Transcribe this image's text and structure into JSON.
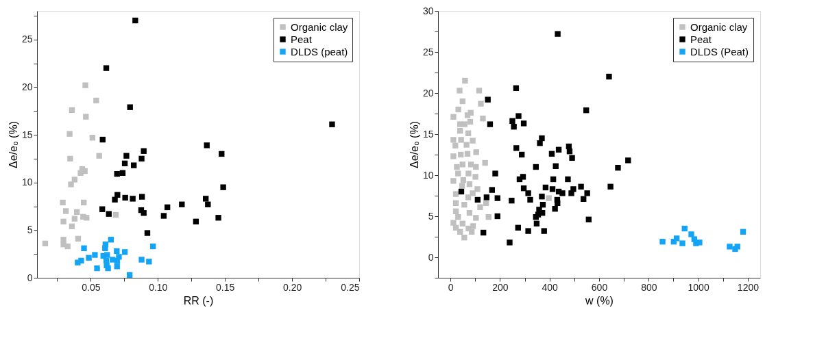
{
  "chart_data": [
    {
      "type": "scatter",
      "xlabel": "RR (-)",
      "ylabel": "Δe/e₀ (%)",
      "marker": "square",
      "grid": false,
      "legend": "top right",
      "xlim": [
        0.01,
        0.25
      ],
      "ylim": [
        0,
        28
      ],
      "xticks": [
        {
          "value": 0.025,
          "label": null
        },
        0.05,
        {
          "value": 0.075,
          "label": null
        },
        {
          "value": 0.1,
          "label": "0.10"
        },
        {
          "value": 0.125,
          "label": null
        },
        0.15,
        {
          "value": 0.175,
          "label": null
        },
        {
          "value": 0.2,
          "label": "0.20"
        },
        {
          "value": 0.225,
          "label": null
        },
        0.25
      ],
      "yticks": [
        0,
        {
          "value": 2.5,
          "label": null
        },
        5,
        {
          "value": 7.5,
          "label": null
        },
        10,
        {
          "value": 12.5,
          "label": null
        },
        15,
        {
          "value": 17.5,
          "label": null
        },
        20,
        {
          "value": 22.5,
          "label": null
        },
        25,
        {
          "value": 27.5,
          "label": null
        }
      ],
      "series": [
        {
          "name": "Organic clay",
          "color": "#c0c0c0",
          "x": [
            0.0161,
            0.0292,
            0.0315,
            0.0297,
            0.0297,
            0.0297,
            0.0328,
            0.036,
            0.038,
            0.0397,
            0.0406,
            0.0353,
            0.038,
            0.0347,
            0.0343,
            0.036,
            0.0425,
            0.0437,
            0.0456,
            0.0448,
            0.0444,
            0.0469,
            0.046,
            0.0464,
            0.0513,
            0.0541,
            0.0563,
            0.0687
          ],
          "values": [
            3.6,
            7.9,
            7.0,
            5.9,
            4.0,
            3.5,
            3.3,
            5.4,
            6.2,
            6.9,
            4.1,
            9.8,
            10.3,
            12.5,
            15.1,
            17.6,
            11.0,
            11.4,
            11.2,
            7.9,
            6.4,
            6.3,
            20.2,
            16.9,
            14.7,
            18.6,
            12.8,
            6.6
          ]
        },
        {
          "name": "Peat",
          "color": "#000000",
          "x": [
            0.0832,
            0.0616,
            0.0793,
            0.0589,
            0.0766,
            0.0754,
            0.0821,
            0.0879,
            0.0895,
            0.0696,
            0.0738,
            0.0699,
            0.068,
            0.0757,
            0.0813,
            0.0882,
            0.0586,
            0.0635,
            0.0876,
            0.0895,
            0.0922,
            0.1044,
            0.1071,
            0.1179,
            0.1284,
            0.2298,
            0.1365,
            0.1475,
            0.1487,
            0.1357,
            0.1373,
            0.1451
          ],
          "values": [
            27.0,
            22.0,
            17.9,
            14.5,
            12.8,
            12.0,
            11.8,
            12.5,
            13.3,
            10.9,
            11.0,
            8.7,
            8.2,
            8.4,
            8.3,
            8.5,
            7.2,
            6.7,
            7.1,
            6.8,
            4.7,
            6.5,
            7.4,
            7.7,
            5.9,
            16.1,
            13.9,
            13.0,
            9.5,
            8.3,
            7.7,
            6.3
          ]
        },
        {
          "name": "DLDS (peat)",
          "color": "#13a4f5",
          "x": [
            0.0403,
            0.0429,
            0.045,
            0.0486,
            0.0531,
            0.0547,
            0.0594,
            0.0607,
            0.061,
            0.0616,
            0.0622,
            0.0619,
            0.0629,
            0.0651,
            0.0663,
            0.0694,
            0.0697,
            0.071,
            0.0696,
            0.0754,
            0.079,
            0.0879,
            0.0934,
            0.0964
          ],
          "values": [
            1.6,
            1.8,
            3.1,
            2.1,
            2.4,
            1.0,
            2.3,
            3.1,
            3.5,
            1.8,
            2.4,
            1.3,
            1.0,
            4.0,
            1.9,
            2.8,
            1.8,
            2.2,
            1.2,
            2.7,
            0.3,
            1.9,
            1.7,
            3.3
          ]
        }
      ]
    },
    {
      "type": "scatter",
      "xlabel": "w (%)",
      "ylabel": "Δe/e₀ (%)",
      "marker": "square",
      "grid": false,
      "legend": "top right",
      "xlim": [
        -50,
        1250
      ],
      "ylim": [
        -2.5,
        30
      ],
      "xticks": [
        0,
        {
          "value": 100,
          "label": null
        },
        200,
        {
          "value": 300,
          "label": null
        },
        400,
        {
          "value": 500,
          "label": null
        },
        600,
        {
          "value": 700,
          "label": null
        },
        800,
        {
          "value": 900,
          "label": null
        },
        1000,
        {
          "value": 1100,
          "label": null
        },
        1200
      ],
      "yticks": [
        {
          "value": -2.5,
          "label": null
        },
        0,
        {
          "value": 2.5,
          "label": null
        },
        5,
        {
          "value": 7.5,
          "label": null
        },
        10,
        {
          "value": 12.5,
          "label": null
        },
        15,
        {
          "value": 17.5,
          "label": null
        },
        20,
        {
          "value": 22.5,
          "label": null
        },
        25,
        {
          "value": 27.5,
          "label": null
        },
        30
      ],
      "series": [
        {
          "name": "Organic clay",
          "color": "#c0c0c0",
          "x": [
            59,
            37,
            116,
            49,
            123,
            32,
            82,
            12,
            69,
            131,
            39,
            80,
            39,
            72,
            12,
            43,
            20,
            65,
            12,
            42,
            69,
            104,
            140,
            49,
            83,
            103,
            31,
            73,
            101,
            12,
            52,
            77,
            109,
            22,
            90,
            72,
            397,
            22,
            56,
            144,
            120,
            22,
            77,
            103,
            154,
            12,
            49,
            91,
            22,
            73,
            56,
            39,
            86,
            31,
            47,
            26,
            90,
            57
          ],
          "values": [
            21.5,
            20.3,
            20.3,
            19.0,
            18.7,
            18.0,
            17.6,
            17.1,
            17.3,
            16.9,
            16.2,
            16.5,
            15.4,
            15.1,
            14.3,
            14.3,
            13.6,
            13.7,
            12.3,
            12.5,
            12.6,
            12.8,
            11.5,
            11.3,
            11.3,
            11.0,
            10.2,
            10.2,
            9.8,
            9.3,
            9.4,
            8.9,
            8.3,
            7.7,
            7.8,
            7.3,
            7.2,
            6.6,
            6.4,
            6.6,
            6.1,
            5.6,
            5.4,
            4.8,
            4.9,
            4.2,
            4.1,
            3.8,
            3.6,
            3.5,
            2.4,
            3.1,
            3.1,
            4.9,
            8.7,
            11.0,
            14.2,
            16.2
          ]
        },
        {
          "name": "Peat",
          "color": "#000000",
          "x": [
            433,
            640,
            265,
            151,
            548,
            275,
            250,
            256,
            296,
            160,
            369,
            361,
            266,
            288,
            409,
            437,
            478,
            481,
            491,
            345,
            425,
            293,
            279,
            181,
            415,
            474,
            44,
            168,
            296,
            314,
            384,
            412,
            437,
            452,
            496,
            488,
            527,
            552,
            537,
            110,
            146,
            190,
            247,
            322,
            369,
            431,
            432,
            373,
            422,
            358,
            371,
            354,
            345,
            190,
            558,
            348,
            273,
            314,
            378,
            133,
            239,
            646,
            717,
            676
          ],
          "values": [
            27.2,
            22.0,
            20.6,
            19.2,
            17.9,
            17.2,
            16.6,
            15.9,
            16.3,
            16.2,
            14.5,
            13.9,
            13.3,
            12.5,
            12.6,
            13.1,
            13.5,
            12.9,
            12.1,
            11.0,
            11.1,
            9.8,
            9.5,
            10.2,
            9.5,
            9.5,
            8.0,
            8.2,
            8.4,
            7.8,
            8.5,
            8.3,
            8.0,
            7.8,
            8.3,
            7.8,
            8.6,
            7.8,
            7.1,
            7.0,
            7.3,
            7.2,
            6.9,
            7.0,
            7.4,
            7.0,
            6.6,
            6.4,
            5.9,
            5.8,
            5.4,
            5.2,
            4.9,
            5.0,
            4.6,
            4.1,
            3.6,
            3.2,
            3.2,
            3.0,
            1.8,
            8.6,
            11.8,
            10.9
          ]
        },
        {
          "name": "DLDS (Peat)",
          "color": "#13a4f5",
          "x": [
            856,
            901,
            913,
            936,
            945,
            972,
            984,
            991,
            1005,
            1127,
            1149,
            1158,
            1181
          ],
          "values": [
            1.9,
            1.9,
            2.3,
            1.7,
            3.5,
            2.8,
            2.2,
            1.7,
            1.8,
            1.3,
            1.0,
            1.3,
            3.1
          ]
        }
      ]
    }
  ]
}
